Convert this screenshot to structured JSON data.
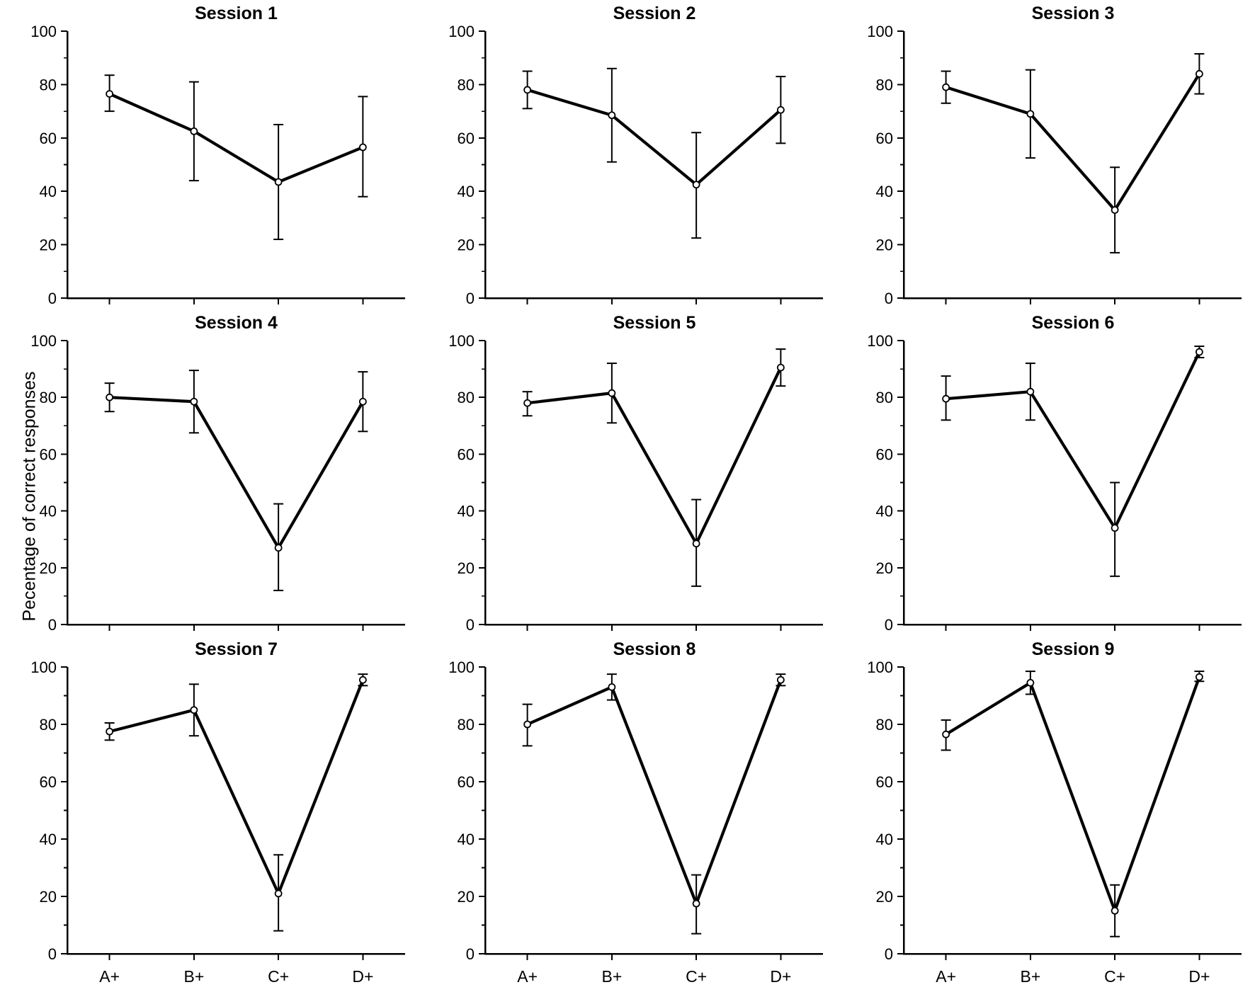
{
  "figure": {
    "ylabel": "Pecentage of correct responses",
    "categories": [
      "A+",
      "B+",
      "C+",
      "D+"
    ],
    "ylim": [
      0,
      100
    ],
    "yticks": [
      0,
      20,
      40,
      60,
      80,
      100
    ],
    "yticks_minor": [
      10,
      30,
      50,
      70,
      90
    ],
    "grid": false,
    "legend": "none",
    "line_color": "#000000",
    "marker_fill": "#ffffff",
    "marker_stroke": "#000000",
    "background": "#ffffff"
  },
  "chart_data": [
    {
      "type": "line",
      "title": "Session 1",
      "categories": [
        "A+",
        "B+",
        "C+",
        "D+"
      ],
      "values": [
        76.5,
        62.5,
        43.5,
        56.5
      ],
      "error_low": [
        70,
        44,
        22,
        38
      ],
      "error_high": [
        83.5,
        81,
        65,
        75.5
      ],
      "xlabel": "",
      "ylim": [
        0,
        100
      ],
      "x_tick_labels_visible": false
    },
    {
      "type": "line",
      "title": "Session 2",
      "categories": [
        "A+",
        "B+",
        "C+",
        "D+"
      ],
      "values": [
        78,
        68.5,
        42.5,
        70.5
      ],
      "error_low": [
        71,
        51,
        22.5,
        58
      ],
      "error_high": [
        85,
        86,
        62,
        83
      ],
      "xlabel": "",
      "ylim": [
        0,
        100
      ],
      "x_tick_labels_visible": false
    },
    {
      "type": "line",
      "title": "Session 3",
      "categories": [
        "A+",
        "B+",
        "C+",
        "D+"
      ],
      "values": [
        79,
        69,
        33,
        84
      ],
      "error_low": [
        73,
        52.5,
        17,
        76.5
      ],
      "error_high": [
        85,
        85.5,
        49,
        91.5
      ],
      "xlabel": "",
      "ylim": [
        0,
        100
      ],
      "x_tick_labels_visible": false
    },
    {
      "type": "line",
      "title": "Session 4",
      "categories": [
        "A+",
        "B+",
        "C+",
        "D+"
      ],
      "values": [
        80,
        78.5,
        27,
        78.5
      ],
      "error_low": [
        75,
        67.5,
        12,
        68
      ],
      "error_high": [
        85,
        89.5,
        42.5,
        89
      ],
      "xlabel": "",
      "ylim": [
        0,
        100
      ],
      "x_tick_labels_visible": false
    },
    {
      "type": "line",
      "title": "Session 5",
      "categories": [
        "A+",
        "B+",
        "C+",
        "D+"
      ],
      "values": [
        78,
        81.5,
        28.5,
        90.5
      ],
      "error_low": [
        73.5,
        71,
        13.5,
        84
      ],
      "error_high": [
        82,
        92,
        44,
        97
      ],
      "xlabel": "",
      "ylim": [
        0,
        100
      ],
      "x_tick_labels_visible": false
    },
    {
      "type": "line",
      "title": "Session 6",
      "categories": [
        "A+",
        "B+",
        "C+",
        "D+"
      ],
      "values": [
        79.5,
        82,
        34,
        96
      ],
      "error_low": [
        72,
        72,
        17,
        94
      ],
      "error_high": [
        87.5,
        92,
        50,
        98
      ],
      "xlabel": "",
      "ylim": [
        0,
        100
      ],
      "x_tick_labels_visible": false
    },
    {
      "type": "line",
      "title": "Session 7",
      "categories": [
        "A+",
        "B+",
        "C+",
        "D+"
      ],
      "values": [
        77.5,
        85,
        21,
        95.5
      ],
      "error_low": [
        74.5,
        76,
        8,
        93.5
      ],
      "error_high": [
        80.5,
        94,
        34.5,
        97.5
      ],
      "xlabel": "",
      "ylim": [
        0,
        100
      ],
      "x_tick_labels_visible": true
    },
    {
      "type": "line",
      "title": "Session 8",
      "categories": [
        "A+",
        "B+",
        "C+",
        "D+"
      ],
      "values": [
        80,
        93,
        17.5,
        95.5
      ],
      "error_low": [
        72.5,
        88.5,
        7,
        93.5
      ],
      "error_high": [
        87,
        97.5,
        27.5,
        97.5
      ],
      "xlabel": "",
      "ylim": [
        0,
        100
      ],
      "x_tick_labels_visible": true
    },
    {
      "type": "line",
      "title": "Session 9",
      "categories": [
        "A+",
        "B+",
        "C+",
        "D+"
      ],
      "values": [
        76.5,
        94.5,
        15,
        96.5
      ],
      "error_low": [
        71,
        90.5,
        6,
        95
      ],
      "error_high": [
        81.5,
        98.5,
        24,
        98.5
      ],
      "xlabel": "",
      "ylim": [
        0,
        100
      ],
      "x_tick_labels_visible": true
    }
  ]
}
